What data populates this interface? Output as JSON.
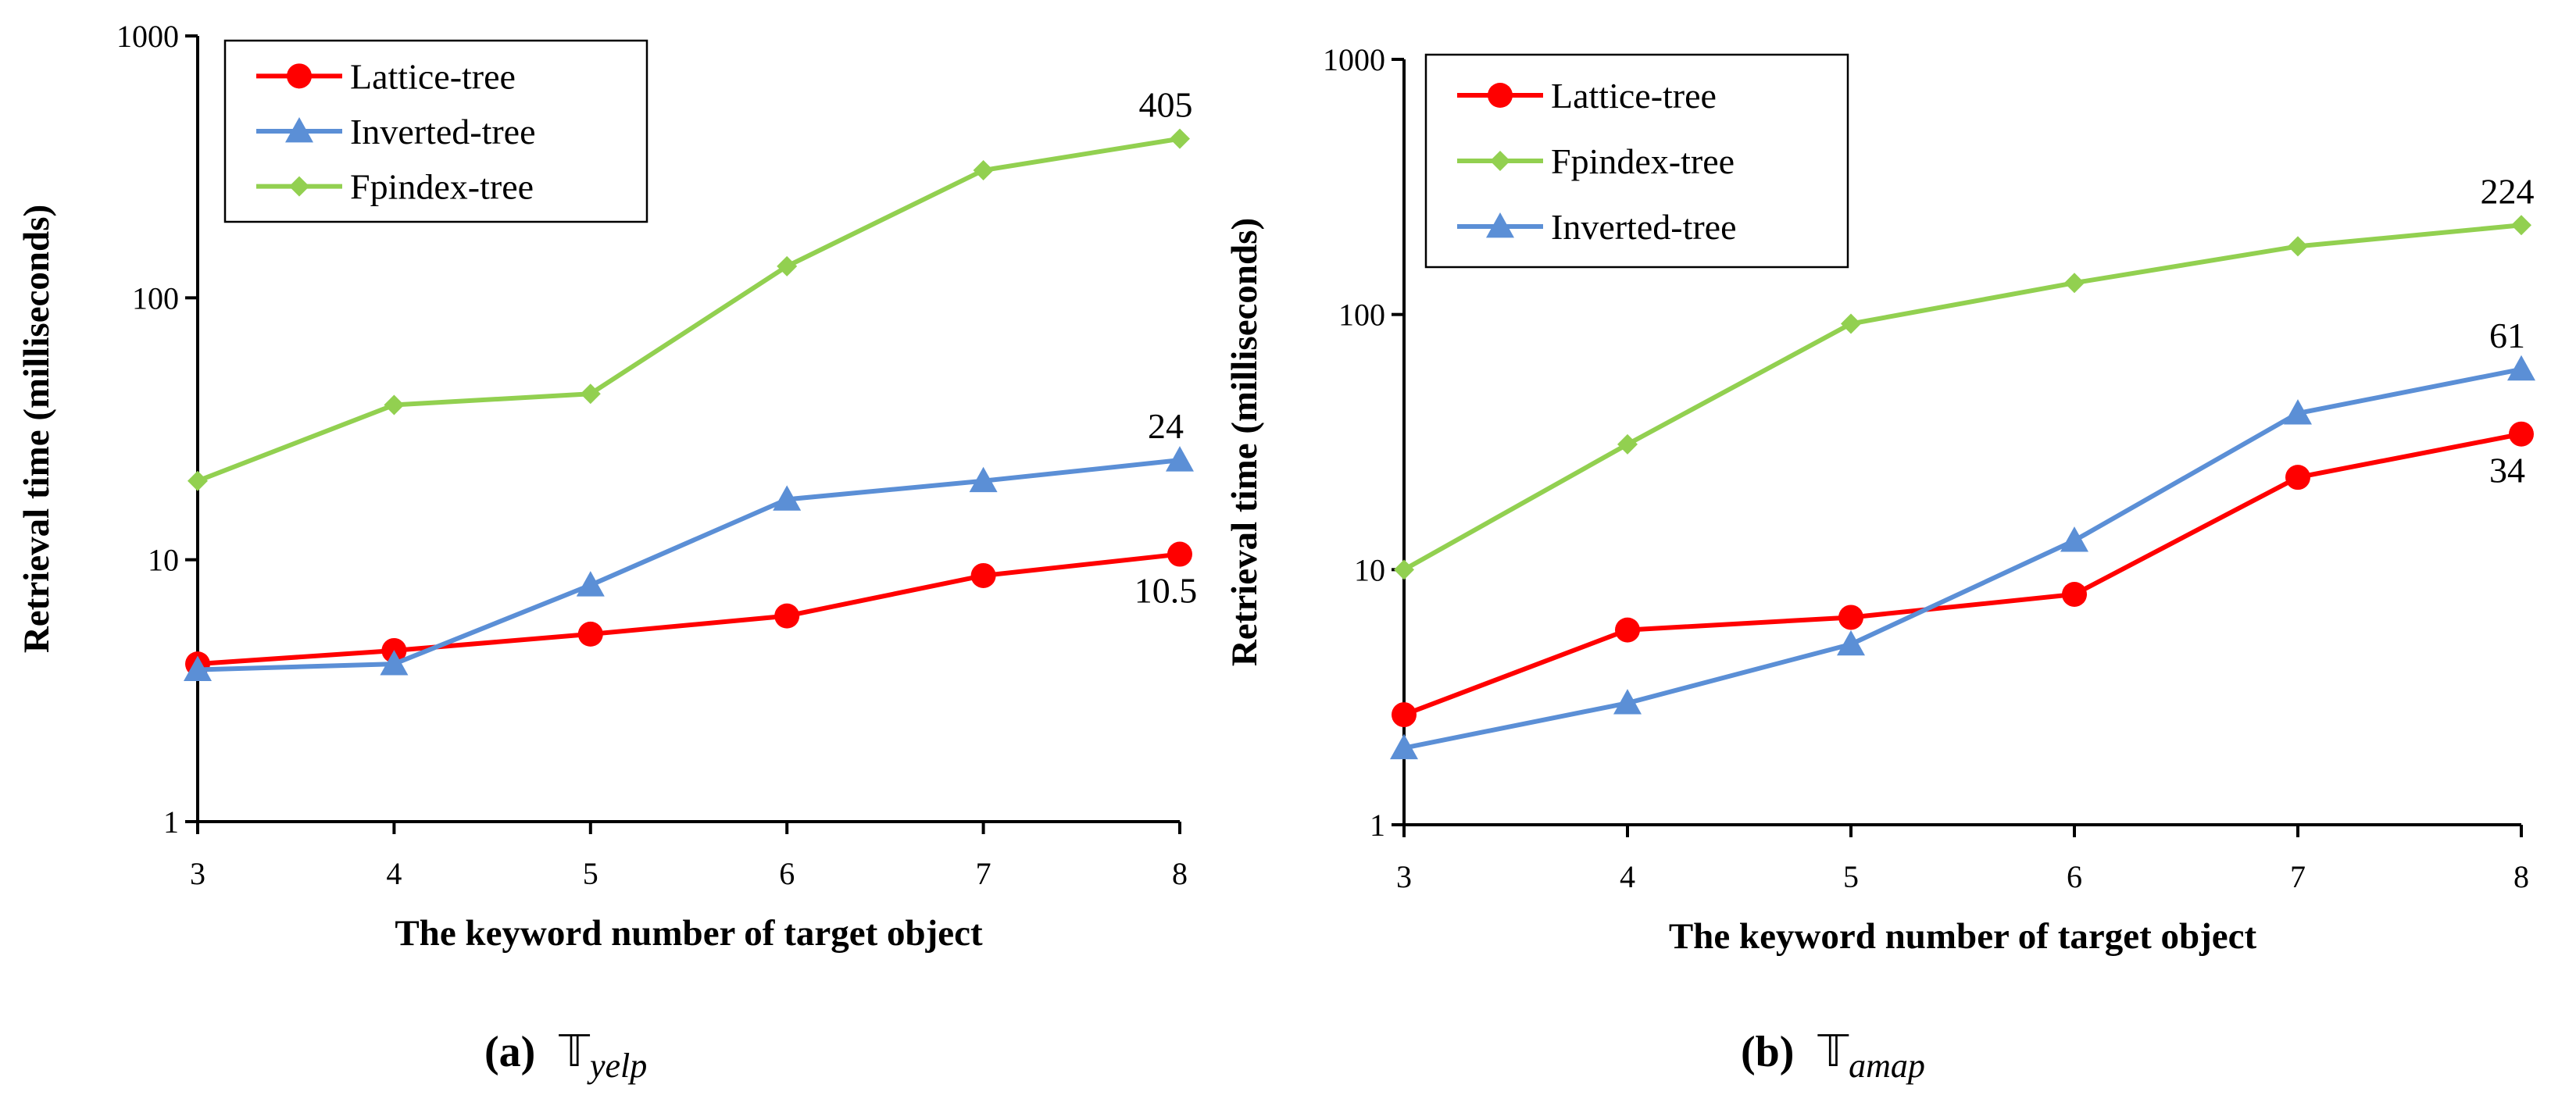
{
  "chart_data": [
    {
      "type": "line",
      "id": "yelp",
      "caption_label": "(a)",
      "caption_symbol": "𝕋",
      "caption_subscript": "yelp",
      "xlabel": "The keyword number of target object",
      "ylabel": "Retrieval time (milliseconds)",
      "yscale": "log",
      "ylim": [
        1,
        1000
      ],
      "y_tick_labels": [
        "1",
        "10",
        "100",
        "1000"
      ],
      "y_tick_values": [
        1,
        10,
        100,
        1000
      ],
      "x": [
        3,
        4,
        5,
        6,
        7,
        8
      ],
      "x_tick_labels": [
        "3",
        "4",
        "5",
        "6",
        "7",
        "8"
      ],
      "legend_position": "top-left",
      "series": [
        {
          "name": "Lattice-tree",
          "color": "#ff0000",
          "marker": "circle",
          "values": [
            4,
            4.5,
            5.2,
            6.1,
            8.7,
            10.5
          ]
        },
        {
          "name": "Inverted-tree",
          "color": "#5b8fd6",
          "marker": "triangle",
          "values": [
            3.8,
            4,
            8,
            17,
            20,
            24
          ]
        },
        {
          "name": "Fpindex-tree",
          "color": "#92d050",
          "marker": "diamond",
          "values": [
            20,
            39,
            43,
            132,
            307,
            405
          ]
        }
      ],
      "annotations": [
        {
          "text": "405",
          "series": 2,
          "index": 5,
          "pos": "above"
        },
        {
          "text": "24",
          "series": 1,
          "index": 5,
          "pos": "above"
        },
        {
          "text": "10.5",
          "series": 0,
          "index": 5,
          "pos": "below"
        }
      ]
    },
    {
      "type": "line",
      "id": "amap",
      "caption_label": "(b)",
      "caption_symbol": "𝕋",
      "caption_subscript": "amap",
      "xlabel": "The keyword number of target object",
      "ylabel": "Retrieval time (milliseconds)",
      "yscale": "log",
      "ylim": [
        1,
        1000
      ],
      "y_tick_labels": [
        "1",
        "10",
        "100",
        "1000"
      ],
      "y_tick_values": [
        1,
        10,
        100,
        1000
      ],
      "x": [
        3,
        4,
        5,
        6,
        7,
        8
      ],
      "x_tick_labels": [
        "3",
        "4",
        "5",
        "6",
        "7",
        "8"
      ],
      "legend_position": "top-left",
      "series": [
        {
          "name": "Lattice-tree",
          "color": "#ff0000",
          "marker": "circle",
          "values": [
            2.7,
            5.8,
            6.5,
            8,
            23,
            34
          ]
        },
        {
          "name": "Fpindex-tree",
          "color": "#92d050",
          "marker": "diamond",
          "values": [
            10,
            31,
            92,
            133,
            185,
            224
          ]
        },
        {
          "name": "Inverted-tree",
          "color": "#5b8fd6",
          "marker": "triangle",
          "values": [
            2,
            3,
            5.1,
            13,
            41,
            61
          ]
        }
      ],
      "annotations": [
        {
          "text": "224",
          "series": 1,
          "index": 5,
          "pos": "above"
        },
        {
          "text": "61",
          "series": 2,
          "index": 5,
          "pos": "above"
        },
        {
          "text": "34",
          "series": 0,
          "index": 5,
          "pos": "below"
        }
      ]
    }
  ]
}
